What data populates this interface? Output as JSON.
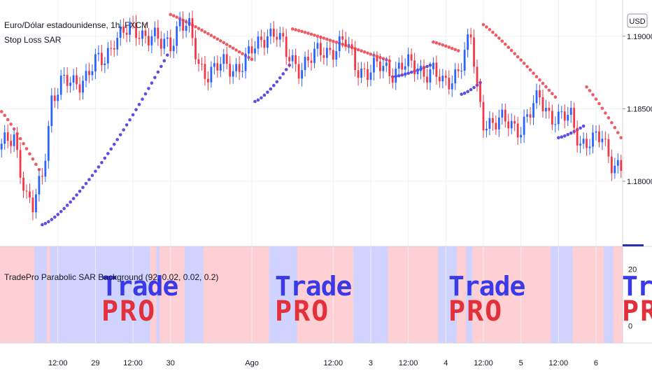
{
  "chart_data": [
    {
      "type": "candlestick",
      "title": "Euro/Dólar estadounidense, 1h, FXCM",
      "indicator": "Stop Loss SAR",
      "currency": "USD",
      "y_ticks": [
        {
          "value": 1.18,
          "label": "1.18000"
        },
        {
          "value": 1.185,
          "label": "1.18500"
        },
        {
          "value": 1.19,
          "label": "1.19000"
        }
      ],
      "ylim": [
        1.1755,
        1.1925
      ],
      "x_ticks": [
        {
          "t": 18,
          "label": "12:00"
        },
        {
          "t": 30,
          "label": "29"
        },
        {
          "t": 42,
          "label": "12:00"
        },
        {
          "t": 54,
          "label": "30"
        },
        {
          "t": 80,
          "label": "Ago"
        },
        {
          "t": 106,
          "label": "12:00"
        },
        {
          "t": 118,
          "label": "3"
        },
        {
          "t": 130,
          "label": "12:00"
        },
        {
          "t": 142,
          "label": "4"
        },
        {
          "t": 154,
          "label": "12:00"
        },
        {
          "t": 166,
          "label": "5"
        },
        {
          "t": 178,
          "label": "12:00"
        },
        {
          "t": 190,
          "label": "6"
        }
      ],
      "bars_count": 199,
      "colors": {
        "up": "#2962ff",
        "down": "#f23645",
        "sar_up": "#5b4ee0",
        "sar_down": "#ef5a63",
        "grid": "#f0f3fa"
      },
      "price_anchors": [
        [
          0,
          1.1822
        ],
        [
          4,
          1.1832
        ],
        [
          8,
          1.1788
        ],
        [
          10,
          1.178
        ],
        [
          13,
          1.1804
        ],
        [
          16,
          1.1858
        ],
        [
          19,
          1.1866
        ],
        [
          23,
          1.1868
        ],
        [
          27,
          1.1873
        ],
        [
          30,
          1.188
        ],
        [
          33,
          1.1884
        ],
        [
          36,
          1.19
        ],
        [
          40,
          1.1902
        ],
        [
          44,
          1.1904
        ],
        [
          48,
          1.19
        ],
        [
          51,
          1.1893
        ],
        [
          54,
          1.1896
        ],
        [
          57,
          1.1911
        ],
        [
          60,
          1.1903
        ],
        [
          63,
          1.188
        ],
        [
          66,
          1.1876
        ],
        [
          70,
          1.1879
        ],
        [
          74,
          1.1878
        ],
        [
          78,
          1.1884
        ],
        [
          82,
          1.1893
        ],
        [
          85,
          1.1904
        ],
        [
          88,
          1.1902
        ],
        [
          91,
          1.1886
        ],
        [
          95,
          1.188
        ],
        [
          99,
          1.1884
        ],
        [
          103,
          1.189
        ],
        [
          107,
          1.1893
        ],
        [
          110,
          1.1895
        ],
        [
          113,
          1.188
        ],
        [
          117,
          1.1876
        ],
        [
          121,
          1.1878
        ],
        [
          125,
          1.1877
        ],
        [
          128,
          1.188
        ],
        [
          131,
          1.1878
        ],
        [
          135,
          1.1877
        ],
        [
          138,
          1.1876
        ],
        [
          141,
          1.1865
        ],
        [
          144,
          1.1872
        ],
        [
          147,
          1.1883
        ],
        [
          150,
          1.1898
        ],
        [
          152,
          1.1862
        ],
        [
          154,
          1.1843
        ],
        [
          158,
          1.184
        ],
        [
          162,
          1.184
        ],
        [
          166,
          1.1838
        ],
        [
          169,
          1.1846
        ],
        [
          172,
          1.1858
        ],
        [
          175,
          1.1848
        ],
        [
          178,
          1.1842
        ],
        [
          182,
          1.1844
        ],
        [
          185,
          1.1828
        ],
        [
          189,
          1.1826
        ],
        [
          192,
          1.183
        ],
        [
          195,
          1.1815
        ],
        [
          198,
          1.1808
        ]
      ],
      "sar_segments": [
        {
          "trend": "down",
          "from": 0,
          "to": 12,
          "start": 1.1848,
          "end": 1.1808
        },
        {
          "trend": "up",
          "from": 13,
          "to": 53,
          "start": 1.177,
          "end": 1.1887
        },
        {
          "trend": "down",
          "from": 54,
          "to": 80,
          "start": 1.1915,
          "end": 1.1884
        },
        {
          "trend": "up",
          "from": 81,
          "to": 92,
          "start": 1.1855,
          "end": 1.188
        },
        {
          "trend": "down",
          "from": 93,
          "to": 124,
          "start": 1.1905,
          "end": 1.1883
        },
        {
          "trend": "up",
          "from": 125,
          "to": 137,
          "start": 1.1872,
          "end": 1.188
        },
        {
          "trend": "down",
          "from": 138,
          "to": 146,
          "start": 1.1896,
          "end": 1.189
        },
        {
          "trend": "up",
          "from": 147,
          "to": 153,
          "start": 1.186,
          "end": 1.1868
        },
        {
          "trend": "down",
          "from": 154,
          "to": 177,
          "start": 1.1908,
          "end": 1.1858
        },
        {
          "trend": "up",
          "from": 178,
          "to": 186,
          "start": 1.183,
          "end": 1.1838
        },
        {
          "trend": "down",
          "from": 187,
          "to": 198,
          "start": 1.1865,
          "end": 1.183
        }
      ]
    },
    {
      "type": "background-bands",
      "title": "TradePro Parabolic SAR Background (92, 0.02, 0.02, 0.2)",
      "y_ticks": [
        {
          "value": 20,
          "label": "20"
        },
        {
          "value": 0,
          "label": "0"
        }
      ],
      "colors": {
        "bullish": "#d0d2ff",
        "bearish": "#ffd0d3"
      },
      "bands": [
        {
          "state": "bearish",
          "from": 0,
          "to": 11
        },
        {
          "state": "bullish",
          "from": 11,
          "to": 15
        },
        {
          "state": "bearish",
          "from": 15,
          "to": 16
        },
        {
          "state": "bullish",
          "from": 16,
          "to": 48
        },
        {
          "state": "bearish",
          "from": 48,
          "to": 50
        },
        {
          "state": "bullish",
          "from": 50,
          "to": 51
        },
        {
          "state": "bearish",
          "from": 51,
          "to": 59
        },
        {
          "state": "bullish",
          "from": 59,
          "to": 65
        },
        {
          "state": "bearish",
          "from": 65,
          "to": 86
        },
        {
          "state": "bullish",
          "from": 86,
          "to": 95
        },
        {
          "state": "bearish",
          "from": 95,
          "to": 113
        },
        {
          "state": "bullish",
          "from": 113,
          "to": 124
        },
        {
          "state": "bearish",
          "from": 124,
          "to": 140
        },
        {
          "state": "bullish",
          "from": 140,
          "to": 146
        },
        {
          "state": "bearish",
          "from": 146,
          "to": 149
        },
        {
          "state": "bullish",
          "from": 149,
          "to": 151
        },
        {
          "state": "bearish",
          "from": 151,
          "to": 176
        },
        {
          "state": "bullish",
          "from": 176,
          "to": 183
        },
        {
          "state": "bearish",
          "from": 183,
          "to": 193
        },
        {
          "state": "bullish",
          "from": 193,
          "to": 196
        },
        {
          "state": "bearish",
          "from": 196,
          "to": 199
        }
      ],
      "watermark": {
        "line1": "Trade",
        "line2": "PRO"
      },
      "watermark_at": [
        36,
        97,
        158,
        218
      ]
    }
  ]
}
